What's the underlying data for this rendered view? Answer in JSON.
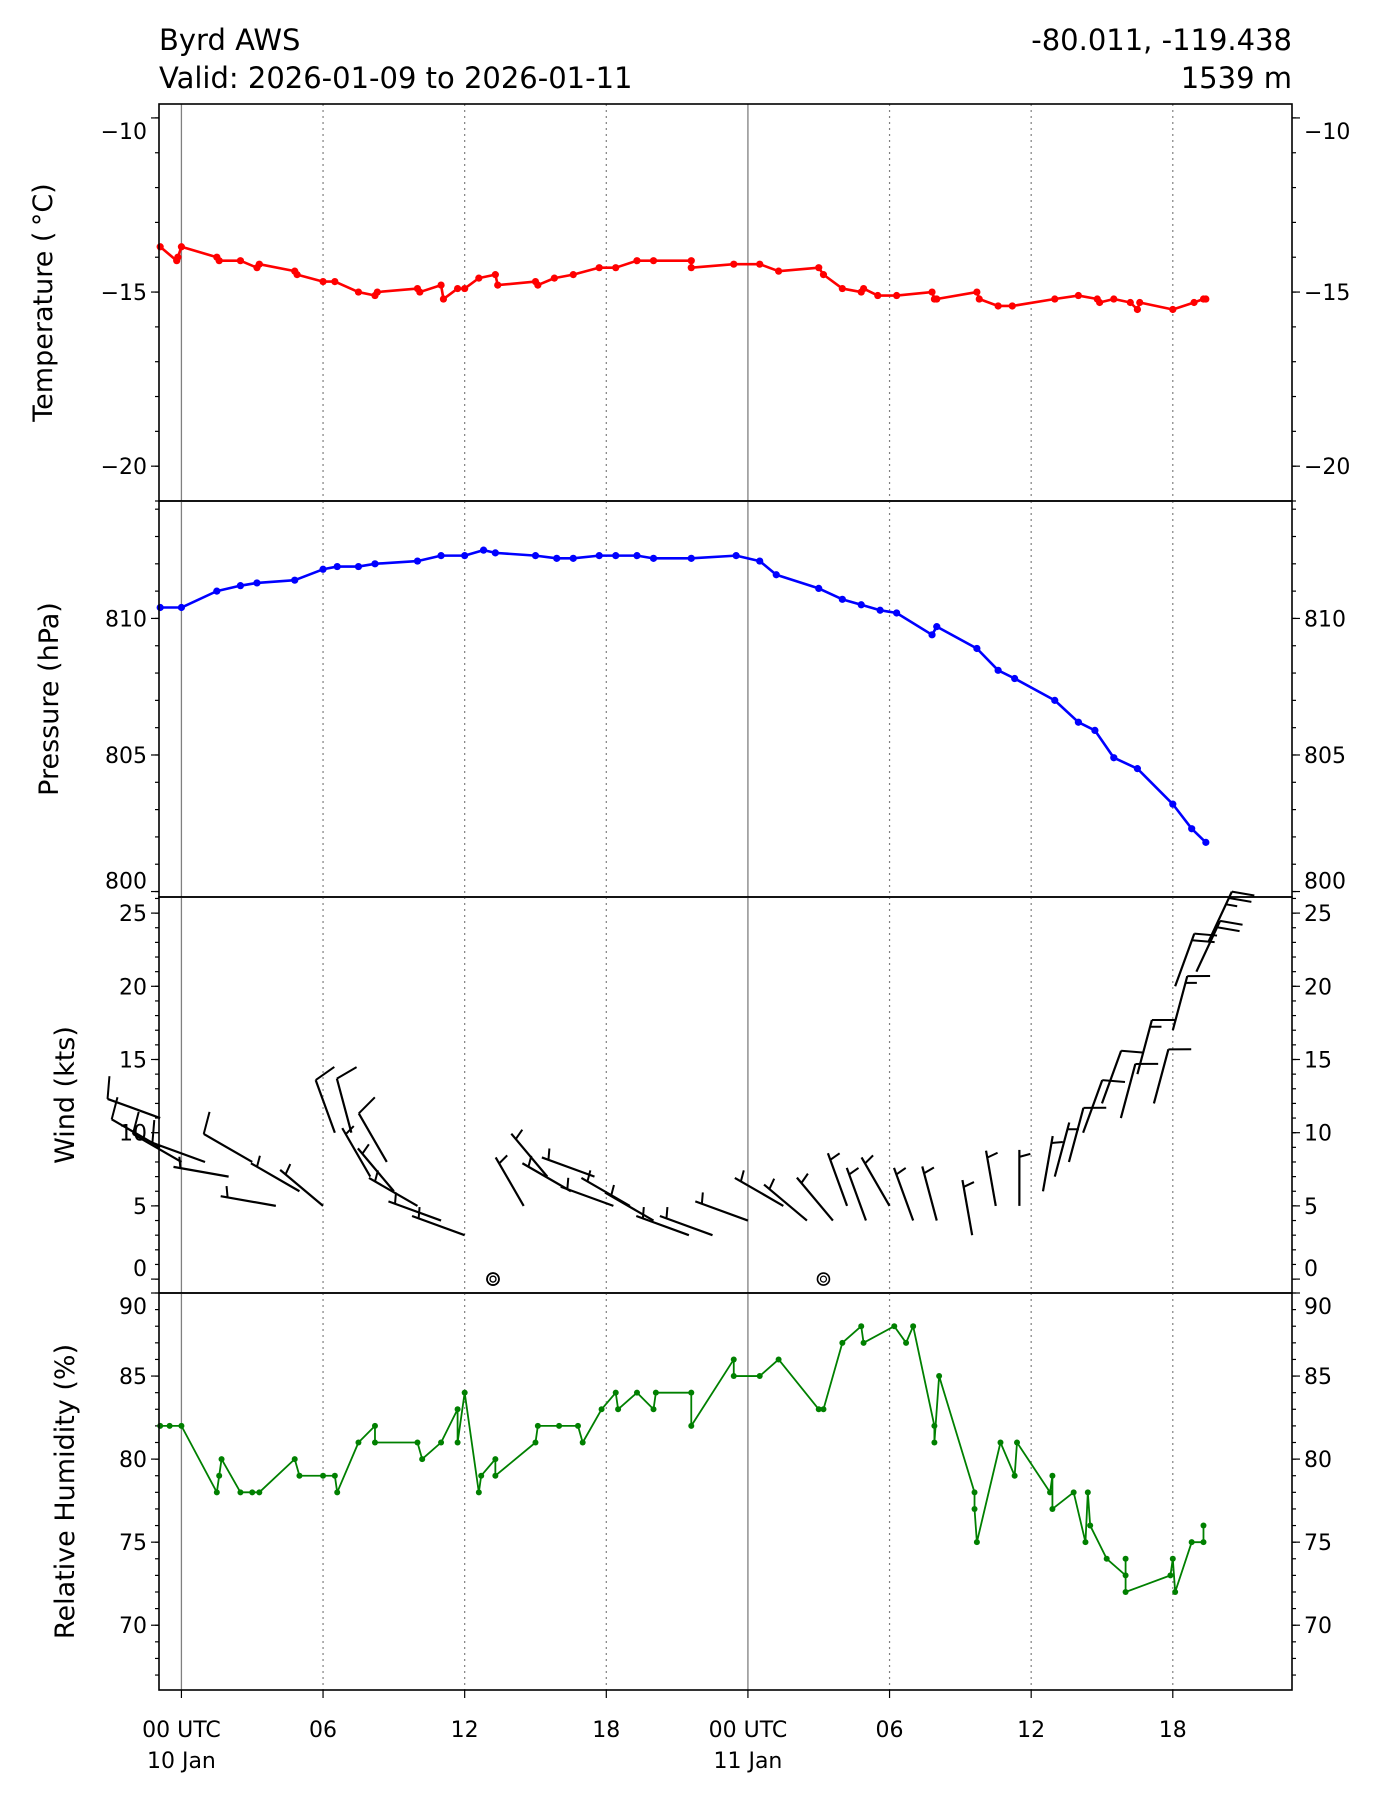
{
  "header": {
    "station": "Byrd AWS",
    "valid": "Valid: 2026-01-09 to 2026-01-11",
    "coords": "-80.011, -119.438",
    "elevation": "1539 m"
  },
  "xaxis": {
    "unit": "hours since 00 UTC 10 Jan",
    "range": [
      -0.95,
      47.05
    ],
    "ticks": [
      {
        "h": 0,
        "l1": "00 UTC",
        "l2": "10 Jan"
      },
      {
        "h": 6,
        "l1": "06",
        "l2": ""
      },
      {
        "h": 12,
        "l1": "12",
        "l2": ""
      },
      {
        "h": 18,
        "l1": "18",
        "l2": ""
      },
      {
        "h": 24,
        "l1": "00 UTC",
        "l2": "11 Jan"
      },
      {
        "h": 30,
        "l1": "06",
        "l2": ""
      },
      {
        "h": 36,
        "l1": "12",
        "l2": ""
      },
      {
        "h": 42,
        "l1": "18",
        "l2": ""
      }
    ],
    "day_lines": [
      0,
      24
    ],
    "grid_lines": [
      6,
      12,
      18,
      30,
      36,
      42
    ]
  },
  "chart_data": [
    {
      "type": "line",
      "name": "temperature",
      "ylabel": "Temperature ($^\\circ$C)",
      "ylabel_text": "Temperature ( °C)",
      "ylim": [
        -21,
        -9.6
      ],
      "yticks": [
        -10,
        -15,
        -20
      ],
      "ytick_labels": [
        "−10",
        "−15",
        "−20"
      ],
      "minor_step": 1,
      "color": "#ff0000",
      "x": [
        -0.9,
        -0.2,
        -0.15,
        0,
        1.5,
        1.6,
        2.5,
        3.2,
        3.3,
        4.8,
        4.9,
        6,
        6.5,
        7.5,
        8.2,
        8.3,
        10,
        10.1,
        11,
        11.1,
        11.7,
        12,
        12.6,
        13.3,
        13.4,
        15,
        15.1,
        15.8,
        16.6,
        17.7,
        18.4,
        19.3,
        20,
        21.6,
        21.6,
        23.4,
        24.5,
        25.3,
        27,
        27.2,
        28,
        28.8,
        28.9,
        29.5,
        30.3,
        31.8,
        31.9,
        32,
        33.7,
        33.8,
        34.6,
        35.2,
        37,
        38,
        38.8,
        38.9,
        39.5,
        40.2,
        40.5,
        40.6,
        42,
        42.9,
        43.3,
        43.4
      ],
      "y": [
        -13.7,
        -14.1,
        -14.0,
        -13.7,
        -14.0,
        -14.1,
        -14.1,
        -14.3,
        -14.2,
        -14.4,
        -14.5,
        -14.7,
        -14.7,
        -15.0,
        -15.1,
        -15.0,
        -14.9,
        -15.0,
        -14.8,
        -15.2,
        -14.9,
        -14.9,
        -14.6,
        -14.5,
        -14.8,
        -14.7,
        -14.8,
        -14.6,
        -14.5,
        -14.3,
        -14.3,
        -14.1,
        -14.1,
        -14.1,
        -14.3,
        -14.2,
        -14.2,
        -14.4,
        -14.3,
        -14.5,
        -14.9,
        -15.0,
        -14.9,
        -15.1,
        -15.1,
        -15.0,
        -15.2,
        -15.2,
        -15.0,
        -15.2,
        -15.4,
        -15.4,
        -15.2,
        -15.1,
        -15.2,
        -15.3,
        -15.2,
        -15.3,
        -15.5,
        -15.3,
        -15.5,
        -15.3,
        -15.2,
        -15.2
      ]
    },
    {
      "type": "line",
      "name": "pressure",
      "ylabel": "Pressure (hPa)",
      "ylim": [
        799.8,
        814.3
      ],
      "yticks": [
        810,
        805,
        800
      ],
      "ytick_labels": [
        "810",
        "805",
        "800"
      ],
      "minor_step": 1,
      "color": "#0000ff",
      "x": [
        -0.9,
        0,
        1.5,
        2.5,
        3.2,
        4.8,
        6,
        6.6,
        7.5,
        8.2,
        10,
        11,
        12,
        12.8,
        13.3,
        15,
        15.9,
        16.6,
        17.7,
        18.4,
        19.3,
        20,
        21.6,
        23.5,
        24.5,
        25.2,
        27,
        28,
        28.8,
        29.6,
        30.3,
        31.8,
        32,
        33.7,
        34.6,
        35.3,
        37,
        38,
        38.7,
        39.5,
        40.5,
        42,
        42.8,
        43.4
      ],
      "y": [
        810.4,
        810.4,
        811.0,
        811.2,
        811.3,
        811.4,
        811.8,
        811.9,
        811.9,
        812.0,
        812.1,
        812.3,
        812.3,
        812.5,
        812.4,
        812.3,
        812.2,
        812.2,
        812.3,
        812.3,
        812.3,
        812.2,
        812.2,
        812.3,
        812.1,
        811.6,
        811.1,
        810.7,
        810.5,
        810.3,
        810.2,
        809.4,
        809.7,
        808.9,
        808.1,
        807.8,
        807.0,
        806.2,
        805.9,
        804.9,
        804.5,
        803.2,
        802.3,
        801.8
      ]
    },
    {
      "type": "barbs",
      "name": "wind",
      "ylabel": "Wind (kts)",
      "ylim": [
        -0.95,
        26.1
      ],
      "yticks": [
        0,
        5,
        10,
        15,
        20,
        25
      ],
      "ytick_labels": [
        "0",
        "5",
        "10",
        "15",
        "20",
        "25"
      ],
      "minor_step": 1,
      "color": "#000000",
      "x": [
        -0.9,
        -0.9,
        0,
        1,
        2,
        3,
        4,
        5,
        6,
        6.5,
        7.2,
        8,
        8.7,
        9,
        10,
        11,
        12,
        13.2,
        13.2,
        14.5,
        15.5,
        16.5,
        17.5,
        18.3,
        19,
        20,
        21.5,
        22.5,
        24,
        25.5,
        26.5,
        27.2,
        27.6,
        28.2,
        29,
        30,
        31,
        32,
        33.5,
        34.5,
        35.5,
        36.5,
        37,
        37.6,
        38.2,
        39,
        39.8,
        40.5,
        41.2,
        42,
        42.1,
        43,
        43.5
      ],
      "speed": [
        11,
        9,
        8,
        8,
        7,
        8,
        5,
        6,
        5,
        10,
        10,
        7,
        8,
        6,
        5,
        4,
        3,
        0,
        0,
        5,
        7,
        6,
        7,
        5,
        5,
        4,
        3,
        3,
        4,
        5,
        4,
        0,
        4,
        5,
        4,
        5,
        4,
        4,
        3,
        5,
        5,
        6,
        7,
        8,
        10,
        12,
        11,
        14,
        12,
        17,
        20,
        21,
        23
      ],
      "direction": [
        290,
        300,
        300,
        290,
        280,
        300,
        280,
        300,
        310,
        340,
        345,
        330,
        330,
        320,
        300,
        290,
        290,
        0,
        0,
        330,
        320,
        300,
        290,
        290,
        300,
        300,
        290,
        290,
        290,
        300,
        310,
        0,
        320,
        340,
        340,
        330,
        340,
        345,
        350,
        350,
        0,
        10,
        15,
        15,
        20,
        20,
        15,
        15,
        15,
        15,
        20,
        25,
        25
      ]
    },
    {
      "type": "line",
      "name": "relative_humidity",
      "ylabel": "Relative Humidity (%)",
      "ylim": [
        66.1,
        90
      ],
      "yticks": [
        90,
        85,
        80,
        75,
        70
      ],
      "ytick_labels": [
        "90",
        "85",
        "80",
        "75",
        "70"
      ],
      "minor_step": 1,
      "color": "#008000",
      "x": [
        -0.9,
        -0.5,
        0,
        1.5,
        1.6,
        1.7,
        2.5,
        3,
        3.3,
        4.8,
        5,
        6,
        6.5,
        6.6,
        7.5,
        8.2,
        8.2,
        10,
        10.2,
        11,
        11.7,
        11.7,
        12,
        12.6,
        12.7,
        13.3,
        13.3,
        15,
        15.1,
        16,
        16.8,
        17,
        17.8,
        18.4,
        18.5,
        19.3,
        20,
        20.1,
        21.6,
        21.6,
        23.4,
        23.4,
        24.5,
        25.3,
        27,
        27.2,
        28,
        28.8,
        28.9,
        30.2,
        30.7,
        31,
        31.9,
        31.9,
        32.1,
        33.6,
        33.6,
        33.7,
        34.7,
        35.3,
        35.4,
        36.8,
        36.9,
        36.9,
        37.8,
        38.3,
        38.4,
        38.5,
        39.2,
        40,
        40,
        40,
        41.9,
        42,
        42.1,
        42.8,
        43.3,
        43.3
      ],
      "y": [
        82,
        82,
        82,
        78,
        79,
        80,
        78,
        78,
        78,
        80,
        79,
        79,
        79,
        78,
        81,
        82,
        81,
        81,
        80,
        81,
        83,
        81,
        84,
        78,
        79,
        80,
        79,
        81,
        82,
        82,
        82,
        81,
        83,
        84,
        83,
        84,
        83,
        84,
        84,
        82,
        86,
        85,
        85,
        86,
        83,
        83,
        87,
        88,
        87,
        88,
        87,
        88,
        82,
        81,
        85,
        78,
        77,
        75,
        81,
        79,
        81,
        78,
        79,
        77,
        78,
        75,
        78,
        76,
        74,
        73,
        74,
        72,
        73,
        74,
        72,
        75,
        75,
        76
      ]
    }
  ]
}
